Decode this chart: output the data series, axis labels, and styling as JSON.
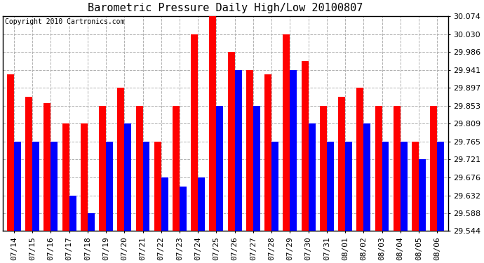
{
  "title": "Barometric Pressure Daily High/Low 20100807",
  "copyright": "Copyright 2010 Cartronics.com",
  "dates": [
    "07/14",
    "07/15",
    "07/16",
    "07/17",
    "07/18",
    "07/19",
    "07/20",
    "07/21",
    "07/22",
    "07/23",
    "07/24",
    "07/25",
    "07/26",
    "07/27",
    "07/28",
    "07/29",
    "07/30",
    "07/31",
    "08/01",
    "08/02",
    "08/03",
    "08/04",
    "08/05",
    "08/06"
  ],
  "highs": [
    29.93,
    29.875,
    29.86,
    29.81,
    29.81,
    29.853,
    29.897,
    29.853,
    29.765,
    29.853,
    30.03,
    30.074,
    29.986,
    29.941,
    29.93,
    30.03,
    29.963,
    29.853,
    29.875,
    29.897,
    29.853,
    29.853,
    29.765,
    29.853
  ],
  "lows": [
    29.765,
    29.765,
    29.765,
    29.632,
    29.588,
    29.765,
    29.809,
    29.765,
    29.676,
    29.654,
    29.676,
    29.853,
    29.941,
    29.853,
    29.765,
    29.941,
    29.809,
    29.765,
    29.765,
    29.809,
    29.765,
    29.765,
    29.721,
    29.765
  ],
  "ymin": 29.544,
  "ymax": 30.074,
  "yticks": [
    29.544,
    29.588,
    29.632,
    29.676,
    29.721,
    29.765,
    29.809,
    29.853,
    29.897,
    29.941,
    29.986,
    30.03,
    30.074
  ],
  "bar_color_high": "#ff0000",
  "bar_color_low": "#0000ff",
  "background_color": "#ffffff",
  "grid_color": "#b0b0b0",
  "title_fontsize": 11,
  "tick_fontsize": 8,
  "copyright_fontsize": 7
}
